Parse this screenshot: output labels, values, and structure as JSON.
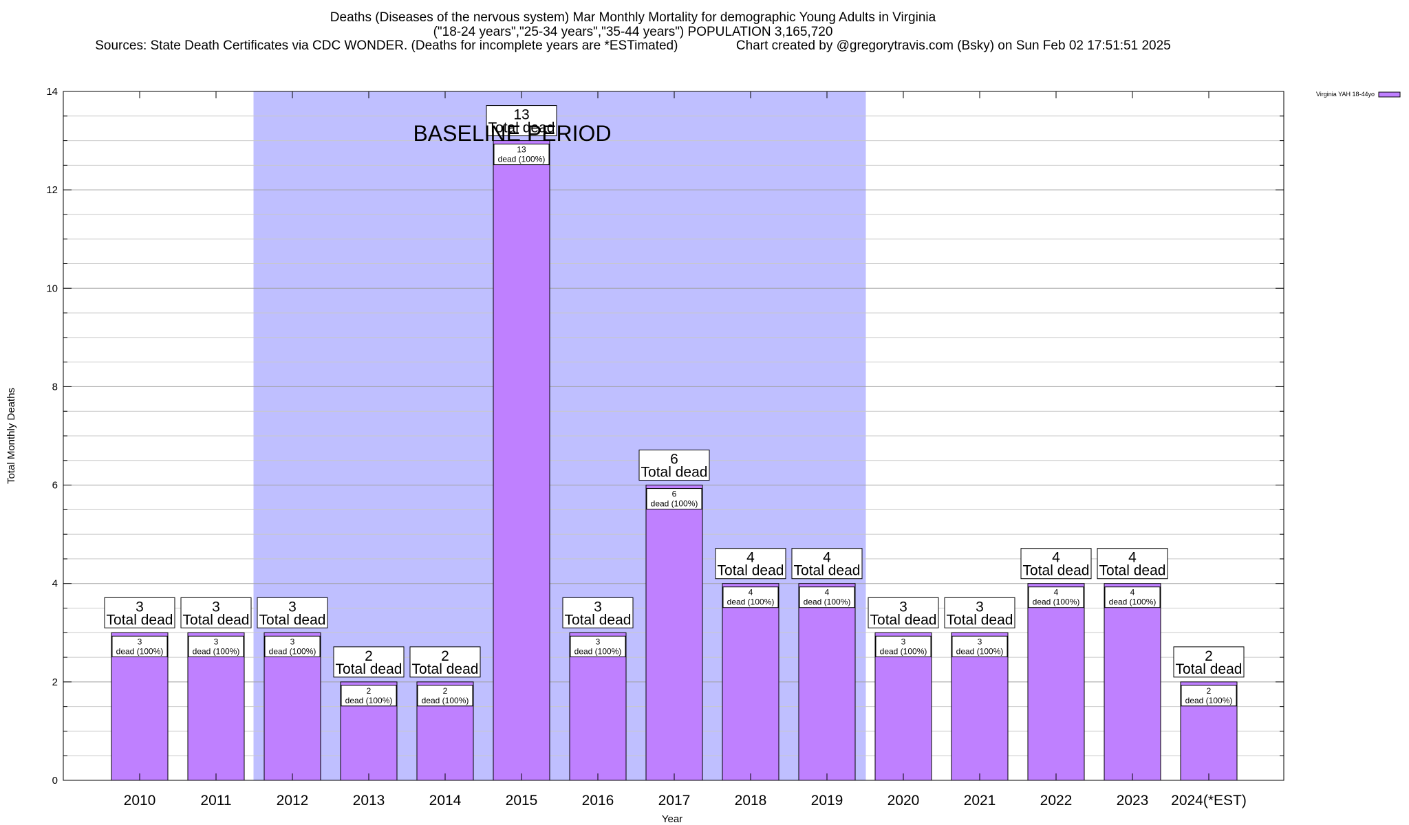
{
  "chart_data": {
    "type": "bar",
    "title_lines": [
      "Deaths (Diseases of the nervous system) Mar Monthly Mortality for demographic Young Adults in Virginia",
      "(\"18-24 years\",\"25-34 years\",\"35-44 years\") POPULATION 3,165,720",
      "Sources: State Death Certificates via CDC WONDER. (Deaths for incomplete years are *ESTimated)                Chart created by @gregorytravis.com (Bsky) on Sun Feb 02 17:51:51 2025"
    ],
    "xlabel": "Year",
    "ylabel": "Total Monthly Deaths",
    "ylim": [
      0,
      14
    ],
    "y_ticks": [
      0,
      2,
      4,
      6,
      8,
      10,
      12,
      14
    ],
    "grid": true,
    "categories": [
      "2010",
      "2011",
      "2012",
      "2013",
      "2014",
      "2015",
      "2016",
      "2017",
      "2018",
      "2019",
      "2020",
      "2021",
      "2022",
      "2023",
      "2024(*EST)"
    ],
    "series": [
      {
        "name": "Virginia YAH 18-44yo",
        "color": "#bf80ff",
        "values": [
          3,
          3,
          3,
          2,
          2,
          13,
          3,
          6,
          4,
          4,
          3,
          3,
          4,
          4,
          2
        ]
      }
    ],
    "total_label_suffix": "Total dead",
    "inner_label_suffix": "dead (100%)",
    "baseline_period": {
      "label": "BASELINE PERIOD",
      "start_category": "2012",
      "end_category": "2019",
      "color": "#bfbfff"
    },
    "legend": {
      "label": "Virginia YAH 18-44yo",
      "placement": "top-right"
    }
  }
}
